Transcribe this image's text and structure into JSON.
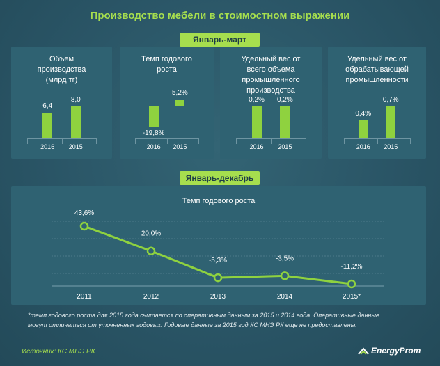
{
  "title": "Производство  мебели в стоимостном выражении",
  "section_q1": "Январь-март",
  "section_year": "Январь-декабрь",
  "panels": [
    {
      "title": [
        "Объем",
        "производства",
        "(млрд тг)"
      ],
      "labels": [
        "6,4",
        "8,0"
      ],
      "categories": [
        "2016",
        "2015"
      ]
    },
    {
      "title": [
        "Темп годового",
        "роста"
      ],
      "labels": [
        "-19,8%",
        "5,2%"
      ],
      "categories": [
        "2016",
        "2015"
      ]
    },
    {
      "title": [
        "Удельный вес от",
        "всего объема",
        "промышленного",
        "производства"
      ],
      "labels": [
        "0,2%",
        "0,2%"
      ],
      "categories": [
        "2016",
        "2015"
      ]
    },
    {
      "title": [
        "Удельный вес от",
        "обрабатывающей",
        "промышленности"
      ],
      "labels": [
        "0,4%",
        "0,7%"
      ],
      "categories": [
        "2016",
        "2015"
      ]
    }
  ],
  "chart_data": [
    {
      "type": "bar",
      "categories": [
        "2016",
        "2015"
      ],
      "values": [
        6.4,
        8.0
      ],
      "ylim": [
        0,
        10
      ]
    },
    {
      "type": "bar",
      "categories": [
        "2016",
        "2015"
      ],
      "values": [
        -19.8,
        5.2
      ],
      "ylim": [
        -25,
        10
      ]
    },
    {
      "type": "bar",
      "categories": [
        "2016",
        "2015"
      ],
      "values": [
        0.2,
        0.2
      ],
      "ylim": [
        0,
        0.5
      ]
    },
    {
      "type": "bar",
      "categories": [
        "2016",
        "2015"
      ],
      "values": [
        0.4,
        0.7
      ],
      "ylim": [
        0,
        1
      ]
    },
    {
      "type": "line",
      "title": "Темп годового роста",
      "x": [
        "2011",
        "2012",
        "2013",
        "2014",
        "2015*"
      ],
      "values": [
        43.6,
        20.0,
        -5.3,
        -3.5,
        -11.2
      ],
      "labels": [
        "43,6%",
        "20,0%",
        "-5,3%",
        "-3,5%",
        "-11,2%"
      ],
      "ylim": [
        -15,
        50
      ],
      "grid": true
    }
  ],
  "footnote_line1": "*темп годового роста для 2015 года считается по оперативным данным за 2015 и 2014 года. Оперативные данные",
  "footnote_line2": "могут отличаться от уточненных годовых. Годовые данные за 2015 год КС МНЭ РК еще не предоставлены.",
  "source": "Источник: КС МНЭ РК",
  "logo_text": "EnergyProm",
  "colors": {
    "accent": "#a6de4e",
    "bar": "#8fd23f",
    "background": "#2a5566",
    "panel": "#2f6272"
  }
}
